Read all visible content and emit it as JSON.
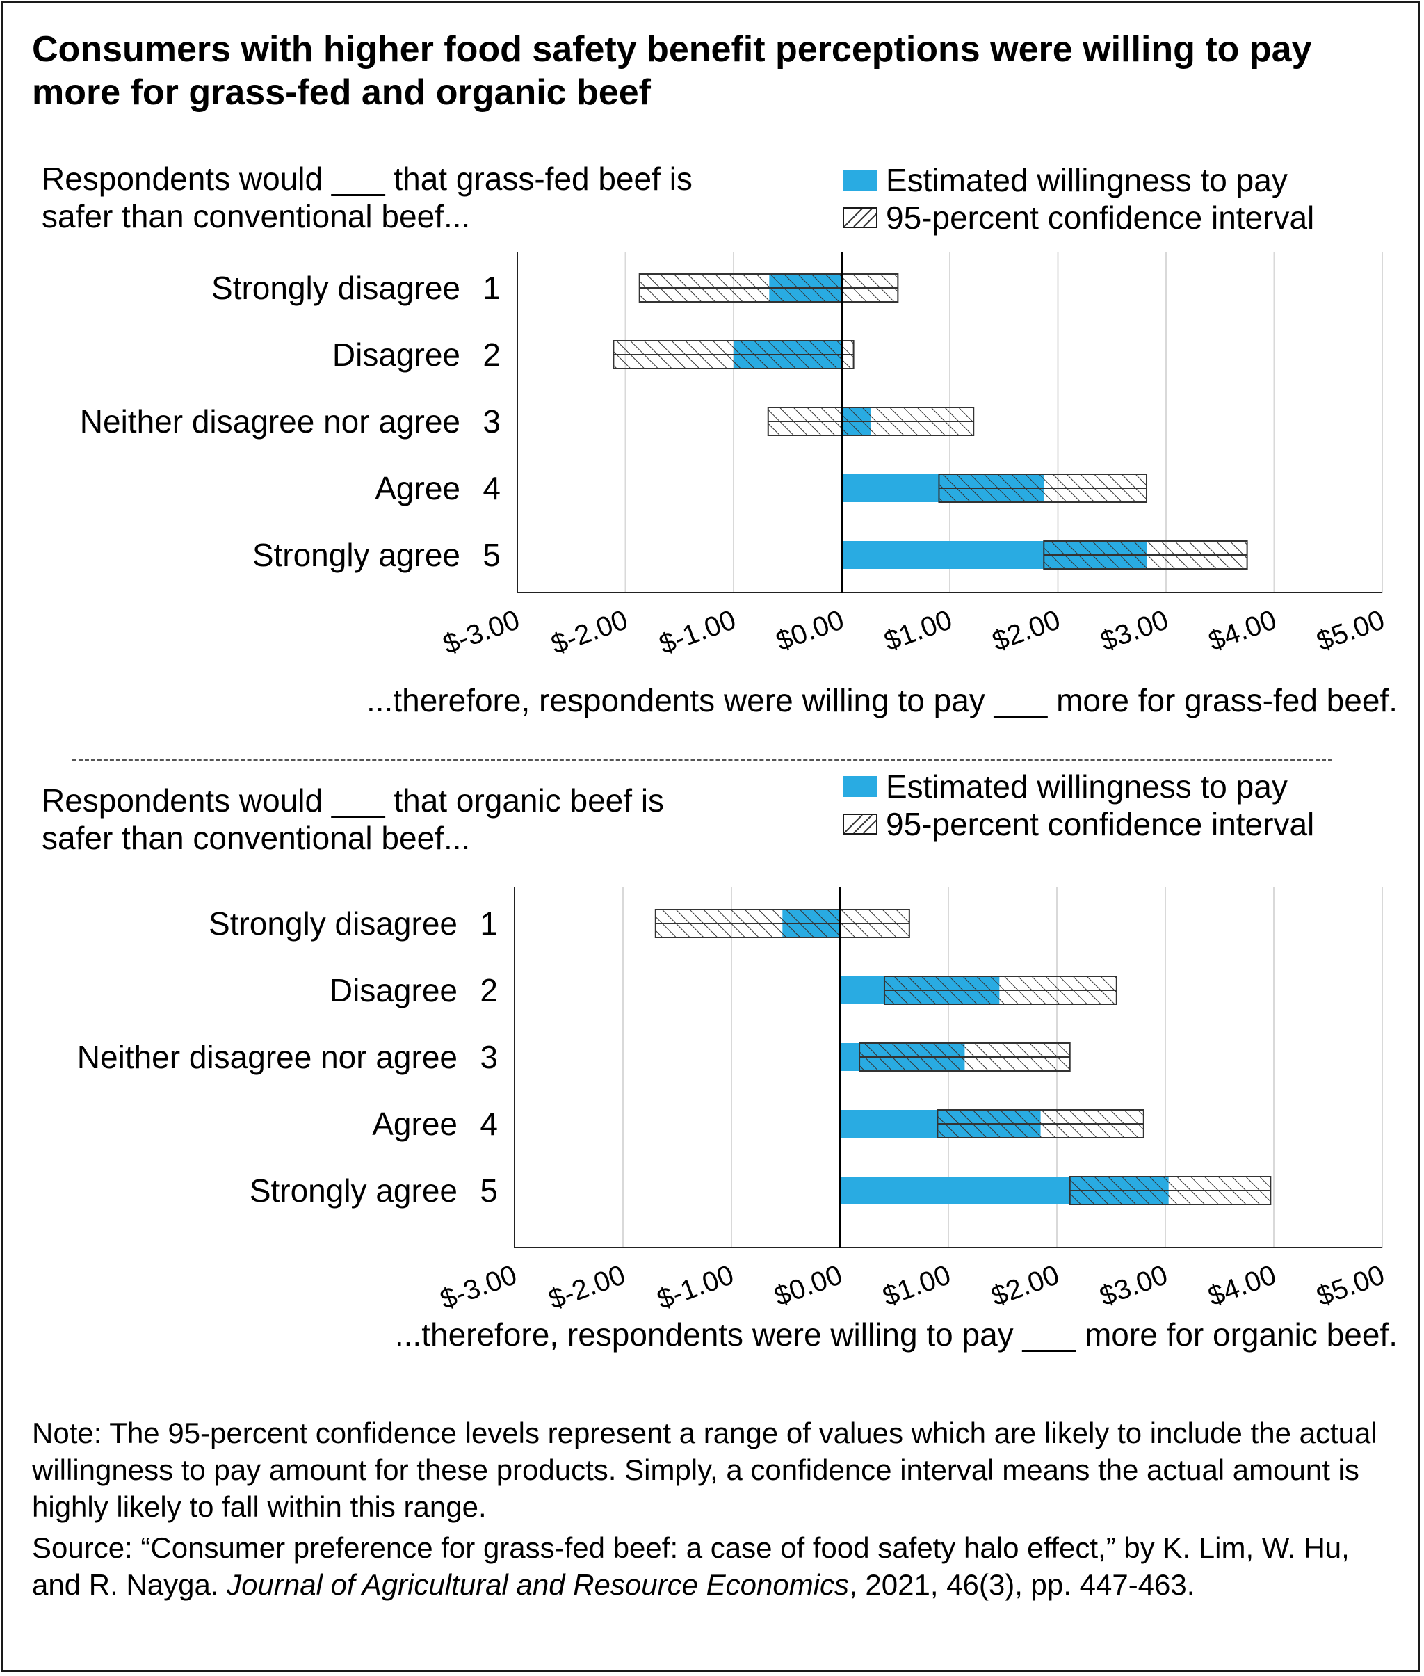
{
  "title": "Consumers with higher food safety benefit perceptions were willing to pay more for grass-fed and organic beef",
  "legend": {
    "estimate": "Estimated willingness to pay",
    "ci": "95-percent confidence interval"
  },
  "colors": {
    "estimate": "#29abe2",
    "ci_fill": "#ffffff",
    "hatch": "#333333"
  },
  "panels": [
    {
      "question": "Respondents would ___ that grass-fed beef is safer than conventional beef...",
      "caption": "...therefore, respondents were willing to pay ___ more for grass-fed beef."
    },
    {
      "question": "Respondents would ___ that organic beef is safer than conventional beef...",
      "caption": "...therefore, respondents were willing to pay ___ more for organic beef."
    }
  ],
  "chart_data": [
    {
      "type": "bar",
      "orientation": "horizontal",
      "categories": [
        "Strongly disagree",
        "Disagree",
        "Neither disagree nor agree",
        "Agree",
        "Strongly agree"
      ],
      "category_codes": [
        "1",
        "2",
        "3",
        "4",
        "5"
      ],
      "x_ticks": [
        "$-3.00",
        "$-2.00",
        "$-1.00",
        "$0.00",
        "$1.00",
        "$2.00",
        "$3.00",
        "$4.00",
        "$5.00"
      ],
      "xlim": [
        -3,
        5
      ],
      "grid": true,
      "series": [
        {
          "name": "Estimated willingness to pay",
          "values": [
            -0.67,
            -1.0,
            0.27,
            1.87,
            2.82
          ]
        },
        {
          "name": "95-percent confidence interval",
          "lower": [
            -1.87,
            -2.11,
            -0.68,
            0.9,
            1.87
          ],
          "upper": [
            0.52,
            0.11,
            1.22,
            2.82,
            3.75
          ]
        }
      ]
    },
    {
      "type": "bar",
      "orientation": "horizontal",
      "categories": [
        "Strongly disagree",
        "Disagree",
        "Neither disagree nor agree",
        "Agree",
        "Strongly agree"
      ],
      "category_codes": [
        "1",
        "2",
        "3",
        "4",
        "5"
      ],
      "x_ticks": [
        "$-3.00",
        "$-2.00",
        "$-1.00",
        "$0.00",
        "$1.00",
        "$2.00",
        "$3.00",
        "$4.00",
        "$5.00"
      ],
      "xlim": [
        -3,
        5
      ],
      "grid": true,
      "series": [
        {
          "name": "Estimated willingness to pay",
          "values": [
            -0.53,
            1.47,
            1.15,
            1.85,
            3.03
          ]
        },
        {
          "name": "95-percent confidence interval",
          "lower": [
            -1.7,
            0.41,
            0.18,
            0.9,
            2.12
          ],
          "upper": [
            0.64,
            2.55,
            2.12,
            2.8,
            3.97
          ]
        }
      ]
    }
  ],
  "note": "Note: The 95-percent confidence levels represent a range of values which are likely to include the actual willingness to pay amount for these products. Simply, a confidence interval means the actual amount is highly likely to fall within this range.",
  "source": {
    "prefix": "Source: “Consumer preference for grass-fed beef: a case of food safety halo effect,” by K. Lim, W. Hu, and R. Nayga. ",
    "journal": "Journal of Agricultural and Resource Economics",
    "suffix": ", 2021, 46(3), pp. 447-463."
  }
}
